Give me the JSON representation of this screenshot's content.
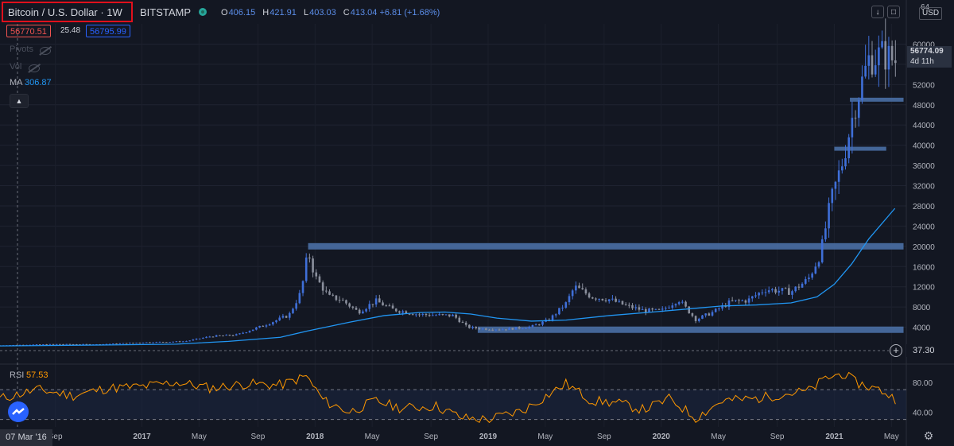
{
  "header": {
    "symbol_title": "Bitcoin / U.S. Dollar · 1W",
    "exchange": "BITSTAMP",
    "ohlc": {
      "o_key": "O",
      "o_val": "406.15",
      "h_key": "H",
      "h_val": "421.91",
      "l_key": "L",
      "l_val": "403.03",
      "c_key": "C",
      "c_val": "413.04 +6.81 (+1.68%)"
    },
    "bid": "56770.51",
    "spread": "25.48",
    "ask": "56795.99"
  },
  "legend": {
    "pivots_label": "Pivots",
    "vol_label": "Vol",
    "ma_label": "MA",
    "ma_value": "306.87",
    "collapse_icon": "chevron-up-icon"
  },
  "price_axis": {
    "currency": "USD",
    "ticks": [
      "60000",
      "56000",
      "52000",
      "48000",
      "44000",
      "40000",
      "36000",
      "32000",
      "28000",
      "24000",
      "20000",
      "16000",
      "12000",
      "8000",
      "4000"
    ],
    "top_partial_tick": "64",
    "last_price": "56774.09",
    "countdown": "4d 11h",
    "ma_price": "37.30"
  },
  "rsi": {
    "label": "RSI",
    "value": "57.53",
    "ticks": [
      "80.00",
      "40.00"
    ]
  },
  "time_axis": {
    "start_label": "07 Mar '16",
    "ticks": [
      "Sep",
      "2017",
      "May",
      "Sep",
      "2018",
      "May",
      "Sep",
      "2019",
      "May",
      "Sep",
      "2020",
      "May",
      "Sep",
      "2021",
      "May"
    ]
  },
  "colors": {
    "background": "#131722",
    "ma_line": "#2196f3",
    "rsi_line": "#ff9800",
    "zones": "#4a6fa5",
    "highlight_box": "#e0101c"
  },
  "chart_data": {
    "type": "candlestick",
    "title": "Bitcoin / U.S. Dollar · 1W",
    "ylim": [
      0,
      64000
    ],
    "close": [
      [
        2016.18,
        410
      ],
      [
        2016.5,
        650
      ],
      [
        2016.75,
        610
      ],
      [
        2017.0,
        990
      ],
      [
        2017.25,
        1200
      ],
      [
        2017.4,
        2200
      ],
      [
        2017.55,
        2500
      ],
      [
        2017.7,
        4300
      ],
      [
        2017.85,
        6400
      ],
      [
        2017.92,
        11000
      ],
      [
        2017.96,
        19000
      ],
      [
        2018.0,
        14000
      ],
      [
        2018.08,
        10000
      ],
      [
        2018.15,
        9500
      ],
      [
        2018.25,
        7000
      ],
      [
        2018.35,
        9200
      ],
      [
        2018.45,
        7500
      ],
      [
        2018.6,
        6500
      ],
      [
        2018.8,
        6300
      ],
      [
        2018.88,
        4000
      ],
      [
        2018.96,
        3700
      ],
      [
        2019.1,
        3600
      ],
      [
        2019.25,
        4100
      ],
      [
        2019.35,
        5400
      ],
      [
        2019.45,
        8700
      ],
      [
        2019.5,
        12000
      ],
      [
        2019.6,
        10000
      ],
      [
        2019.7,
        9500
      ],
      [
        2019.8,
        8200
      ],
      [
        2019.9,
        7300
      ],
      [
        2020.0,
        7200
      ],
      [
        2020.1,
        9500
      ],
      [
        2020.2,
        5500
      ],
      [
        2020.3,
        7000
      ],
      [
        2020.4,
        9000
      ],
      [
        2020.5,
        9300
      ],
      [
        2020.6,
        11500
      ],
      [
        2020.75,
        11000
      ],
      [
        2020.85,
        13500
      ],
      [
        2020.92,
        18500
      ],
      [
        2020.98,
        29000
      ],
      [
        2021.05,
        37000
      ],
      [
        2021.12,
        48000
      ],
      [
        2021.2,
        57000
      ],
      [
        2021.28,
        58000
      ],
      [
        2021.35,
        56774
      ]
    ],
    "ma": [
      [
        2016.18,
        300
      ],
      [
        2016.7,
        450
      ],
      [
        2017.2,
        650
      ],
      [
        2017.5,
        1200
      ],
      [
        2017.8,
        2000
      ],
      [
        2017.95,
        3200
      ],
      [
        2018.2,
        5000
      ],
      [
        2018.4,
        6300
      ],
      [
        2018.6,
        6900
      ],
      [
        2018.75,
        7000
      ],
      [
        2018.9,
        6600
      ],
      [
        2019.05,
        5800
      ],
      [
        2019.25,
        5200
      ],
      [
        2019.45,
        5400
      ],
      [
        2019.7,
        6300
      ],
      [
        2019.95,
        7000
      ],
      [
        2020.15,
        7600
      ],
      [
        2020.35,
        8200
      ],
      [
        2020.55,
        8400
      ],
      [
        2020.75,
        8800
      ],
      [
        2020.9,
        10000
      ],
      [
        2021.0,
        12500
      ],
      [
        2021.1,
        16500
      ],
      [
        2021.2,
        21500
      ],
      [
        2021.35,
        27500
      ]
    ],
    "zones": [
      {
        "y": 20000,
        "from": 2017.96,
        "to": 2021.4
      },
      {
        "y": 3500,
        "from": 2018.94,
        "to": 2021.4
      },
      {
        "y": 39300,
        "from": 2021.0,
        "to": 2021.3
      },
      {
        "y": 49000,
        "from": 2021.09,
        "to": 2021.4
      }
    ],
    "rsi": [
      [
        2016.18,
        58
      ],
      [
        2016.4,
        70
      ],
      [
        2016.6,
        62
      ],
      [
        2016.8,
        72
      ],
      [
        2017.0,
        74
      ],
      [
        2017.2,
        80
      ],
      [
        2017.4,
        72
      ],
      [
        2017.6,
        78
      ],
      [
        2017.8,
        76
      ],
      [
        2017.95,
        88
      ],
      [
        2018.05,
        55
      ],
      [
        2018.2,
        40
      ],
      [
        2018.35,
        55
      ],
      [
        2018.5,
        45
      ],
      [
        2018.7,
        48
      ],
      [
        2018.85,
        32
      ],
      [
        2019.0,
        30
      ],
      [
        2019.2,
        42
      ],
      [
        2019.45,
        78
      ],
      [
        2019.6,
        55
      ],
      [
        2019.75,
        52
      ],
      [
        2019.9,
        43
      ],
      [
        2020.05,
        58
      ],
      [
        2020.2,
        32
      ],
      [
        2020.35,
        55
      ],
      [
        2020.55,
        58
      ],
      [
        2020.7,
        64
      ],
      [
        2020.85,
        68
      ],
      [
        2020.95,
        85
      ],
      [
        2021.05,
        92
      ],
      [
        2021.12,
        80
      ],
      [
        2021.2,
        74
      ],
      [
        2021.28,
        68
      ],
      [
        2021.35,
        57.53
      ]
    ]
  }
}
